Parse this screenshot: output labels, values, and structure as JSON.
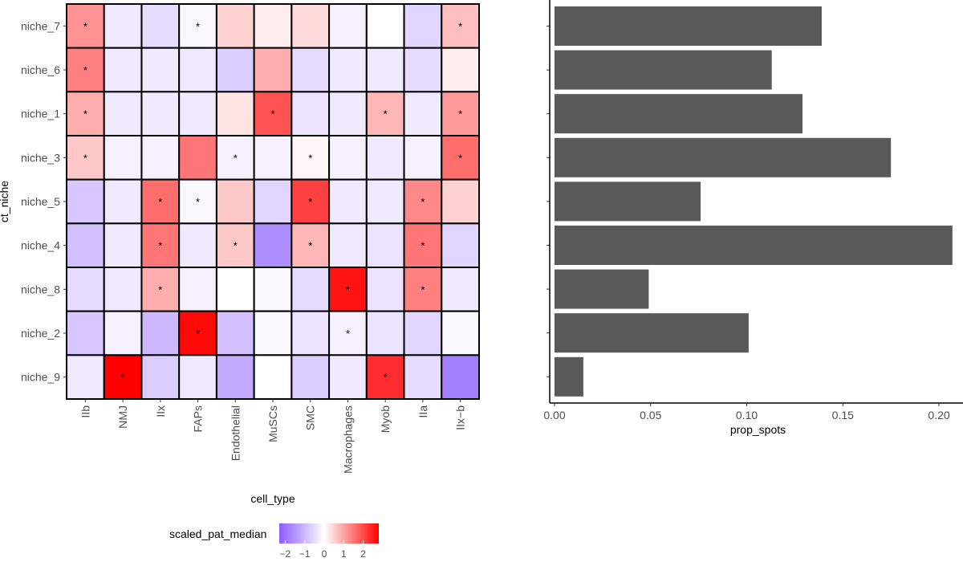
{
  "chart_data": [
    {
      "type": "heatmap",
      "xlabel": "cell_type",
      "ylabel": "ct_niche",
      "x_categories": [
        "IIb",
        "NMJ",
        "IIx",
        "FAPs",
        "Endothelial",
        "MuSCs",
        "SMC",
        "Macrophages",
        "Myob",
        "IIa",
        "IIx−b"
      ],
      "y_categories": [
        "niche_7",
        "niche_6",
        "niche_1",
        "niche_3",
        "niche_5",
        "niche_4",
        "niche_8",
        "niche_2",
        "niche_9"
      ],
      "values": [
        [
          1.2,
          -0.3,
          -0.5,
          -0.1,
          0.5,
          0.2,
          0.4,
          -0.2,
          0.0,
          -0.6,
          0.7
        ],
        [
          1.4,
          -0.3,
          -0.3,
          -0.3,
          -0.7,
          0.9,
          -0.5,
          -0.3,
          -0.3,
          -0.5,
          0.2
        ],
        [
          0.9,
          -0.3,
          -0.3,
          -0.3,
          0.3,
          1.9,
          -0.4,
          -0.3,
          0.8,
          -0.3,
          1.1
        ],
        [
          0.6,
          -0.2,
          -0.2,
          1.5,
          -0.2,
          -0.2,
          0.1,
          -0.2,
          -0.3,
          -0.2,
          1.6
        ],
        [
          -0.8,
          -0.3,
          1.6,
          -0.1,
          0.6,
          -0.6,
          2.1,
          -0.3,
          -0.3,
          1.3,
          0.5
        ],
        [
          -0.9,
          -0.3,
          1.5,
          -0.3,
          0.6,
          -1.6,
          0.8,
          -0.3,
          -0.4,
          1.5,
          -0.6
        ],
        [
          -0.5,
          -0.3,
          0.9,
          -0.2,
          0.0,
          -0.1,
          -0.5,
          2.6,
          -0.4,
          1.4,
          -0.3
        ],
        [
          -0.8,
          -0.2,
          -1.0,
          2.7,
          -0.9,
          -0.1,
          -0.4,
          -0.2,
          -0.4,
          -0.6,
          -0.1
        ],
        [
          -0.3,
          2.8,
          -0.7,
          -0.3,
          -1.2,
          0.0,
          -0.7,
          -0.3,
          2.3,
          -0.5,
          -1.8
        ]
      ],
      "stars": [
        [
          1,
          0,
          0,
          1,
          0,
          0,
          0,
          0,
          0,
          0,
          1
        ],
        [
          1,
          0,
          0,
          0,
          0,
          0,
          0,
          0,
          0,
          0,
          0
        ],
        [
          1,
          0,
          0,
          0,
          0,
          1,
          0,
          0,
          1,
          0,
          1
        ],
        [
          1,
          0,
          0,
          0,
          1,
          0,
          1,
          0,
          0,
          0,
          1
        ],
        [
          0,
          0,
          1,
          1,
          0,
          0,
          1,
          0,
          0,
          1,
          0
        ],
        [
          0,
          0,
          1,
          0,
          1,
          0,
          1,
          0,
          0,
          1,
          0
        ],
        [
          0,
          0,
          1,
          0,
          0,
          0,
          0,
          1,
          0,
          1,
          0
        ],
        [
          0,
          0,
          0,
          1,
          0,
          0,
          0,
          1,
          0,
          0,
          0
        ],
        [
          0,
          1,
          0,
          0,
          0,
          0,
          0,
          0,
          1,
          0,
          0
        ]
      ],
      "star_label": "*",
      "legend": {
        "title": "scaled_pat_median",
        "ticks": [
          "−2",
          "−1",
          "0",
          "1",
          "2"
        ],
        "tick_values": [
          -2,
          -1,
          0,
          1,
          2
        ],
        "range": [
          -2.3,
          2.8
        ],
        "colors": {
          "low": "#8b5cff",
          "mid": "#ffffff",
          "high": "#ff0000"
        },
        "placement": "bottom"
      }
    },
    {
      "type": "bar",
      "orientation": "horizontal",
      "xlabel": "prop_spots",
      "ylabel": "",
      "categories": [
        "niche_7",
        "niche_6",
        "niche_1",
        "niche_3",
        "niche_5",
        "niche_4",
        "niche_8",
        "niche_2",
        "niche_9"
      ],
      "values": [
        0.139,
        0.113,
        0.129,
        0.175,
        0.076,
        0.207,
        0.049,
        0.101,
        0.015
      ],
      "xlim": [
        -0.0025,
        0.2125
      ],
      "ticks": [
        0.0,
        0.05,
        0.1,
        0.15,
        0.2
      ],
      "tick_labels": [
        "0.00",
        "0.05",
        "0.10",
        "0.15",
        "0.20"
      ],
      "bar_color": "#595959",
      "grid": false
    }
  ]
}
